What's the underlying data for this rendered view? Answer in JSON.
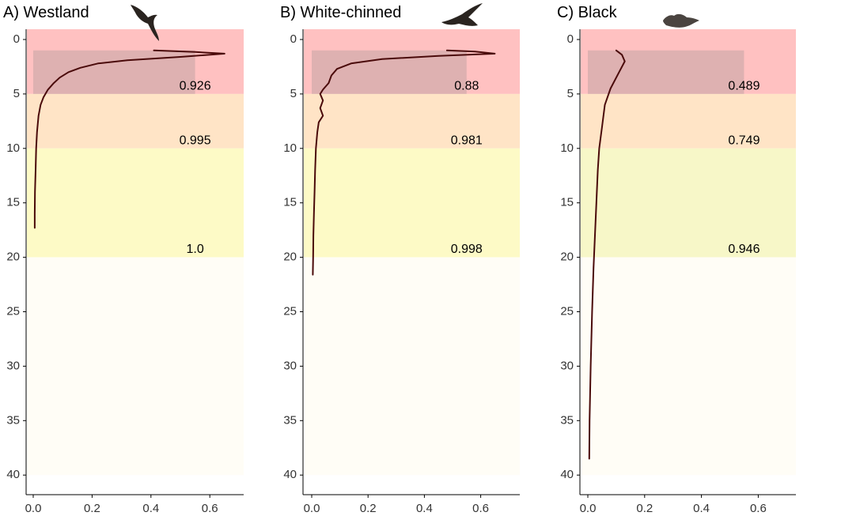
{
  "chart_data": [
    {
      "type": "line",
      "title": "A) Westland",
      "icon": "westland-petrel-silhouette-icon",
      "xlim": [
        0,
        0.72
      ],
      "ylim": [
        0,
        42
      ],
      "x_ticks": [
        0.0,
        0.2,
        0.4,
        0.6
      ],
      "y_ticks": [
        0,
        5,
        10,
        15,
        20,
        25,
        30,
        35,
        40
      ],
      "bands": [
        {
          "from": 0,
          "to": 5,
          "color": "#ffc1c1"
        },
        {
          "from": 5,
          "to": 10,
          "color": "#ffe4c6"
        },
        {
          "from": 10,
          "to": 20,
          "color": "#fdfac6"
        },
        {
          "from": 20,
          "to": 40,
          "color": "#fffdf6"
        }
      ],
      "shade": {
        "depth_from": 1,
        "depth_to": 5,
        "x_to": 0.55
      },
      "band_labels": [
        {
          "text": "0.926",
          "depth": 4.3,
          "x": 0.55
        },
        {
          "text": "0.995",
          "depth": 9.3,
          "x": 0.55
        },
        {
          "text": "1.0",
          "depth": 19.3,
          "x": 0.55
        }
      ],
      "series": [
        {
          "name": "density",
          "color": "#4a0a0a",
          "points": [
            [
              0.41,
              1.0
            ],
            [
              0.55,
              1.15
            ],
            [
              0.65,
              1.3
            ],
            [
              0.5,
              1.6
            ],
            [
              0.32,
              1.9
            ],
            [
              0.22,
              2.2
            ],
            [
              0.16,
              2.6
            ],
            [
              0.12,
              3.0
            ],
            [
              0.09,
              3.5
            ],
            [
              0.07,
              4.0
            ],
            [
              0.05,
              4.6
            ],
            [
              0.035,
              5.3
            ],
            [
              0.025,
              6.0
            ],
            [
              0.018,
              7.0
            ],
            [
              0.013,
              8.5
            ],
            [
              0.01,
              10
            ],
            [
              0.008,
              12
            ],
            [
              0.006,
              14
            ],
            [
              0.005,
              16
            ],
            [
              0.005,
              17.3
            ]
          ]
        }
      ]
    },
    {
      "type": "line",
      "title": "B) White-chinned",
      "icon": "white-chinned-petrel-silhouette-icon",
      "xlim": [
        0,
        0.72
      ],
      "ylim": [
        0,
        42
      ],
      "x_ticks": [
        0.0,
        0.2,
        0.4,
        0.6
      ],
      "y_ticks": [
        0,
        5,
        10,
        15,
        20,
        25,
        30,
        35,
        40
      ],
      "bands": [
        {
          "from": 0,
          "to": 5,
          "color": "#ffc1c1"
        },
        {
          "from": 5,
          "to": 10,
          "color": "#ffe4c6"
        },
        {
          "from": 10,
          "to": 20,
          "color": "#fdfac6"
        },
        {
          "from": 20,
          "to": 40,
          "color": "#fffdf6"
        }
      ],
      "shade": {
        "depth_from": 1,
        "depth_to": 5,
        "x_to": 0.55
      },
      "band_labels": [
        {
          "text": "0.88",
          "depth": 4.3,
          "x": 0.55
        },
        {
          "text": "0.981",
          "depth": 9.3,
          "x": 0.55
        },
        {
          "text": "0.998",
          "depth": 19.3,
          "x": 0.55
        }
      ],
      "series": [
        {
          "name": "density",
          "color": "#4a0a0a",
          "points": [
            [
              0.48,
              1.0
            ],
            [
              0.58,
              1.1
            ],
            [
              0.65,
              1.3
            ],
            [
              0.45,
              1.5
            ],
            [
              0.25,
              1.8
            ],
            [
              0.14,
              2.2
            ],
            [
              0.09,
              2.7
            ],
            [
              0.07,
              3.3
            ],
            [
              0.06,
              4.0
            ],
            [
              0.04,
              4.6
            ],
            [
              0.03,
              5.0
            ],
            [
              0.04,
              5.6
            ],
            [
              0.03,
              6.3
            ],
            [
              0.04,
              7.0
            ],
            [
              0.025,
              7.6
            ],
            [
              0.02,
              8.5
            ],
            [
              0.015,
              10
            ],
            [
              0.012,
              12
            ],
            [
              0.01,
              14
            ],
            [
              0.008,
              16
            ],
            [
              0.006,
              18
            ],
            [
              0.005,
              20
            ],
            [
              0.004,
              21.6
            ]
          ]
        }
      ]
    },
    {
      "type": "line",
      "title": "C) Black",
      "icon": "black-petrel-silhouette-icon",
      "xlim": [
        0,
        0.72
      ],
      "ylim": [
        0,
        42
      ],
      "x_ticks": [
        0.0,
        0.2,
        0.4,
        0.6
      ],
      "y_ticks": [
        0,
        5,
        10,
        15,
        20,
        25,
        30,
        35,
        40
      ],
      "bands": [
        {
          "from": 0,
          "to": 5,
          "color": "#ffc1c1"
        },
        {
          "from": 5,
          "to": 10,
          "color": "#ffe4c6"
        },
        {
          "from": 10,
          "to": 20,
          "color": "#f7f7c8"
        },
        {
          "from": 20,
          "to": 40,
          "color": "#fffdf6"
        }
      ],
      "shade": {
        "depth_from": 1,
        "depth_to": 5,
        "x_to": 0.55
      },
      "band_labels": [
        {
          "text": "0.489",
          "depth": 4.3,
          "x": 0.55
        },
        {
          "text": "0.749",
          "depth": 9.3,
          "x": 0.55
        },
        {
          "text": "0.946",
          "depth": 19.3,
          "x": 0.55
        }
      ],
      "series": [
        {
          "name": "density",
          "color": "#4a0a0a",
          "points": [
            [
              0.1,
              1.0
            ],
            [
              0.12,
              1.4
            ],
            [
              0.13,
              2.0
            ],
            [
              0.11,
              3.0
            ],
            [
              0.08,
              4.5
            ],
            [
              0.06,
              6.0
            ],
            [
              0.05,
              8.0
            ],
            [
              0.04,
              10
            ],
            [
              0.035,
              12
            ],
            [
              0.03,
              15
            ],
            [
              0.025,
              18
            ],
            [
              0.02,
              21
            ],
            [
              0.015,
              25
            ],
            [
              0.01,
              30
            ],
            [
              0.006,
              35
            ],
            [
              0.005,
              38.5
            ]
          ]
        }
      ]
    }
  ]
}
